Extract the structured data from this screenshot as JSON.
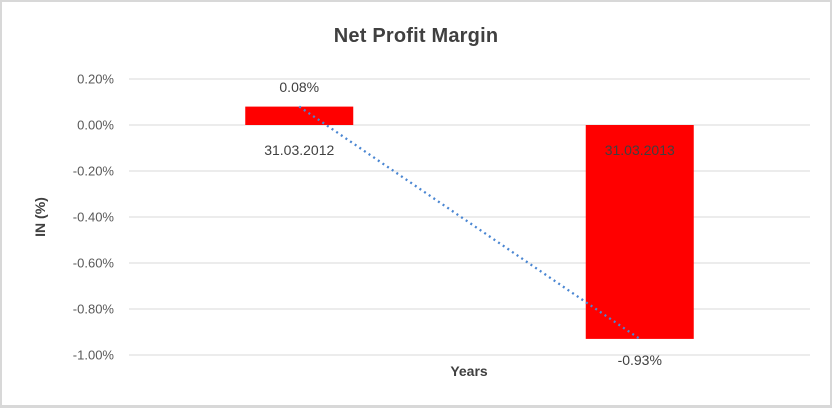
{
  "chart_data": {
    "type": "bar",
    "title": "Net Profit Margin",
    "xlabel": "Years",
    "ylabel": "IN (%)",
    "categories": [
      "31.03.2012",
      "31.03.2013"
    ],
    "values": [
      0.08,
      -0.93
    ],
    "data_labels": [
      "0.08%",
      "-0.93%"
    ],
    "unit": "percent",
    "ylim": [
      -1.0,
      0.2
    ],
    "yticks": [
      {
        "value": 0.2,
        "label": "0.20%"
      },
      {
        "value": 0.0,
        "label": "0.00%"
      },
      {
        "value": -0.2,
        "label": "-0.20%"
      },
      {
        "value": -0.4,
        "label": "-0.40%"
      },
      {
        "value": -0.6,
        "label": "-0.60%"
      },
      {
        "value": -0.8,
        "label": "-0.80%"
      },
      {
        "value": -1.0,
        "label": "-1.00%"
      }
    ],
    "grid": true,
    "legend": false,
    "bar_color": "#FF0000",
    "trendline": {
      "type": "linear",
      "style": "dotted",
      "color": "#4A86D2"
    }
  },
  "colors": {
    "title_text": "#404040",
    "label_text": "#404040",
    "axis_text": "#595959",
    "gridline": "#D9D9D9",
    "border": "#D8D8D8",
    "background": "#FFFFFF"
  }
}
